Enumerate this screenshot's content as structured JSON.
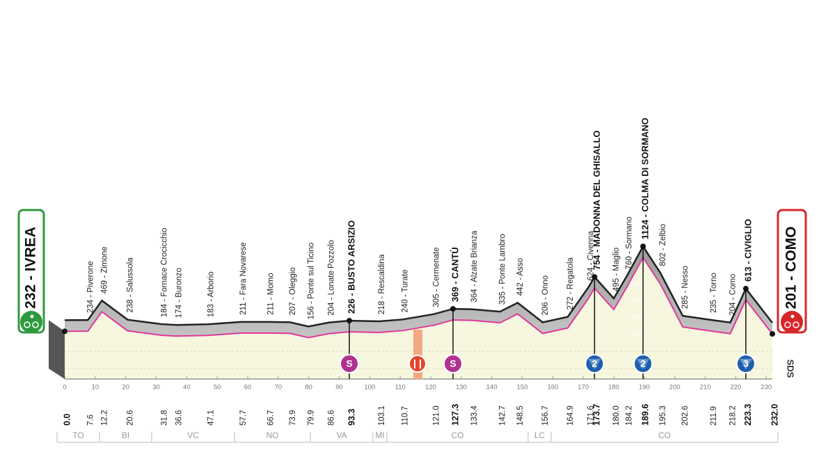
{
  "chart_data": {
    "type": "area",
    "start": {
      "label": "232 - IVREA",
      "elevation": 232
    },
    "finish": {
      "label": "201 - COMO",
      "elevation": 201
    },
    "places": [
      {
        "km": 0,
        "km_label": "0.0",
        "elevation": 232,
        "bold": true
      },
      {
        "km": 7.6,
        "km_label": "7.6",
        "elevation": 234,
        "label": "234 - Piverone"
      },
      {
        "km": 12.2,
        "km_label": "12.2",
        "elevation": 469,
        "label": "469 - Zimone"
      },
      {
        "km": 20.6,
        "km_label": "20.6",
        "elevation": 238,
        "label": "238 - Salussola"
      },
      {
        "km": 31.8,
        "km_label": "31.8",
        "elevation": 184,
        "label": "184 - Fornace Crocicchio"
      },
      {
        "km": 36.6,
        "km_label": "36.6",
        "elevation": 174,
        "label": "174 - Buronzo"
      },
      {
        "km": 47.1,
        "km_label": "47.1",
        "elevation": 183,
        "label": "183 - Arborio"
      },
      {
        "km": 57.7,
        "km_label": "57.7",
        "elevation": 211,
        "label": "211 - Fara Novarese"
      },
      {
        "km": 66.7,
        "km_label": "66.7",
        "elevation": 211,
        "label": "211 - Momo"
      },
      {
        "km": 73.9,
        "km_label": "73.9",
        "elevation": 207,
        "label": "207 - Oleggio"
      },
      {
        "km": 79.9,
        "km_label": "79.9",
        "elevation": 156,
        "label": "156 - Ponte sul Ticino"
      },
      {
        "km": 86.6,
        "km_label": "86.6",
        "elevation": 204,
        "label": "204 - Lonate Pozzolo"
      },
      {
        "km": 93.3,
        "km_label": "93.3",
        "elevation": 226,
        "label": "226 - BUSTO ARSIZIO",
        "bold": true
      },
      {
        "km": 103.1,
        "km_label": "103.1",
        "elevation": 218,
        "label": "218 - Rescaldina"
      },
      {
        "km": 110.7,
        "km_label": "110.7",
        "elevation": 240,
        "label": "240 - Turate"
      },
      {
        "km": 121.0,
        "km_label": "121.0",
        "elevation": 305,
        "label": "305 - Cermenate"
      },
      {
        "km": 127.3,
        "km_label": "127.3",
        "elevation": 369,
        "label": "369 - CANTÙ",
        "bold": true
      },
      {
        "km": 133.4,
        "km_label": "133.4",
        "elevation": 364,
        "label": "364 - Alzate Brianza"
      },
      {
        "km": 142.7,
        "km_label": "142.7",
        "elevation": 335,
        "label": "335 - Ponte Lambro"
      },
      {
        "km": 148.5,
        "km_label": "148.5",
        "elevation": 442,
        "label": "442 - Asso"
      },
      {
        "km": 156.7,
        "km_label": "156.7",
        "elevation": 206,
        "label": "206 - Onno"
      },
      {
        "km": 164.9,
        "km_label": "164.9",
        "elevation": 272,
        "label": "272 - Regatola"
      },
      {
        "km": 171.6,
        "km_label": "171.6",
        "elevation": 624,
        "label": "624 - Civenna"
      },
      {
        "km": 173.7,
        "km_label": "173.7",
        "elevation": 754,
        "label": "754 - MADONNA DEL GHISALLO",
        "bold": true
      },
      {
        "km": 180.0,
        "km_label": "180.0",
        "elevation": 495,
        "label": "495 - Maglio"
      },
      {
        "km": 184.2,
        "km_label": "184.2",
        "elevation": 760,
        "label": "760 - Sormano"
      },
      {
        "km": 189.6,
        "km_label": "189.6",
        "elevation": 1124,
        "label": "1124 - COLMA DI SORMANO",
        "bold": true
      },
      {
        "km": 195.3,
        "km_label": "195.3",
        "elevation": 802,
        "label": "802 - Zelbio"
      },
      {
        "km": 202.6,
        "km_label": "202.6",
        "elevation": 285,
        "label": "285 - Nesso"
      },
      {
        "km": 211.9,
        "km_label": "211.9",
        "elevation": 235,
        "label": "235 - Torno"
      },
      {
        "km": 218.2,
        "km_label": "218.2",
        "elevation": 204,
        "label": "204 - Como"
      },
      {
        "km": 223.3,
        "km_label": "223.3",
        "elevation": 613,
        "label": "613 - CIVIGLIO",
        "bold": true
      },
      {
        "km": 232.0,
        "km_label": "232.0",
        "elevation": 201,
        "bold": true
      }
    ],
    "markers": [
      {
        "km": 93.3,
        "kind": "sprint",
        "label": "S"
      },
      {
        "km": 127.3,
        "kind": "sprint",
        "label": "S"
      },
      {
        "km": 173.7,
        "kind": "climb",
        "label": "2"
      },
      {
        "km": 189.6,
        "kind": "climb",
        "label": "2"
      },
      {
        "km": 223.3,
        "kind": "climb",
        "label": "3"
      }
    ],
    "xlim": [
      0,
      232
    ],
    "xticks": [
      0,
      10,
      20,
      30,
      40,
      50,
      60,
      70,
      80,
      90,
      100,
      110,
      120,
      130,
      140,
      150,
      160,
      170,
      180,
      190,
      200,
      210,
      220,
      230
    ],
    "ylim": [
      0,
      1124
    ],
    "yticks": [
      200,
      400,
      600,
      800
    ],
    "regions": [
      "TO",
      "BI",
      "VC",
      "NO",
      "VA",
      "MI",
      "CO",
      "LC",
      "CO"
    ],
    "logo": "SDS",
    "line_color": "#e0379b",
    "fill_color": "#f7f6de"
  }
}
